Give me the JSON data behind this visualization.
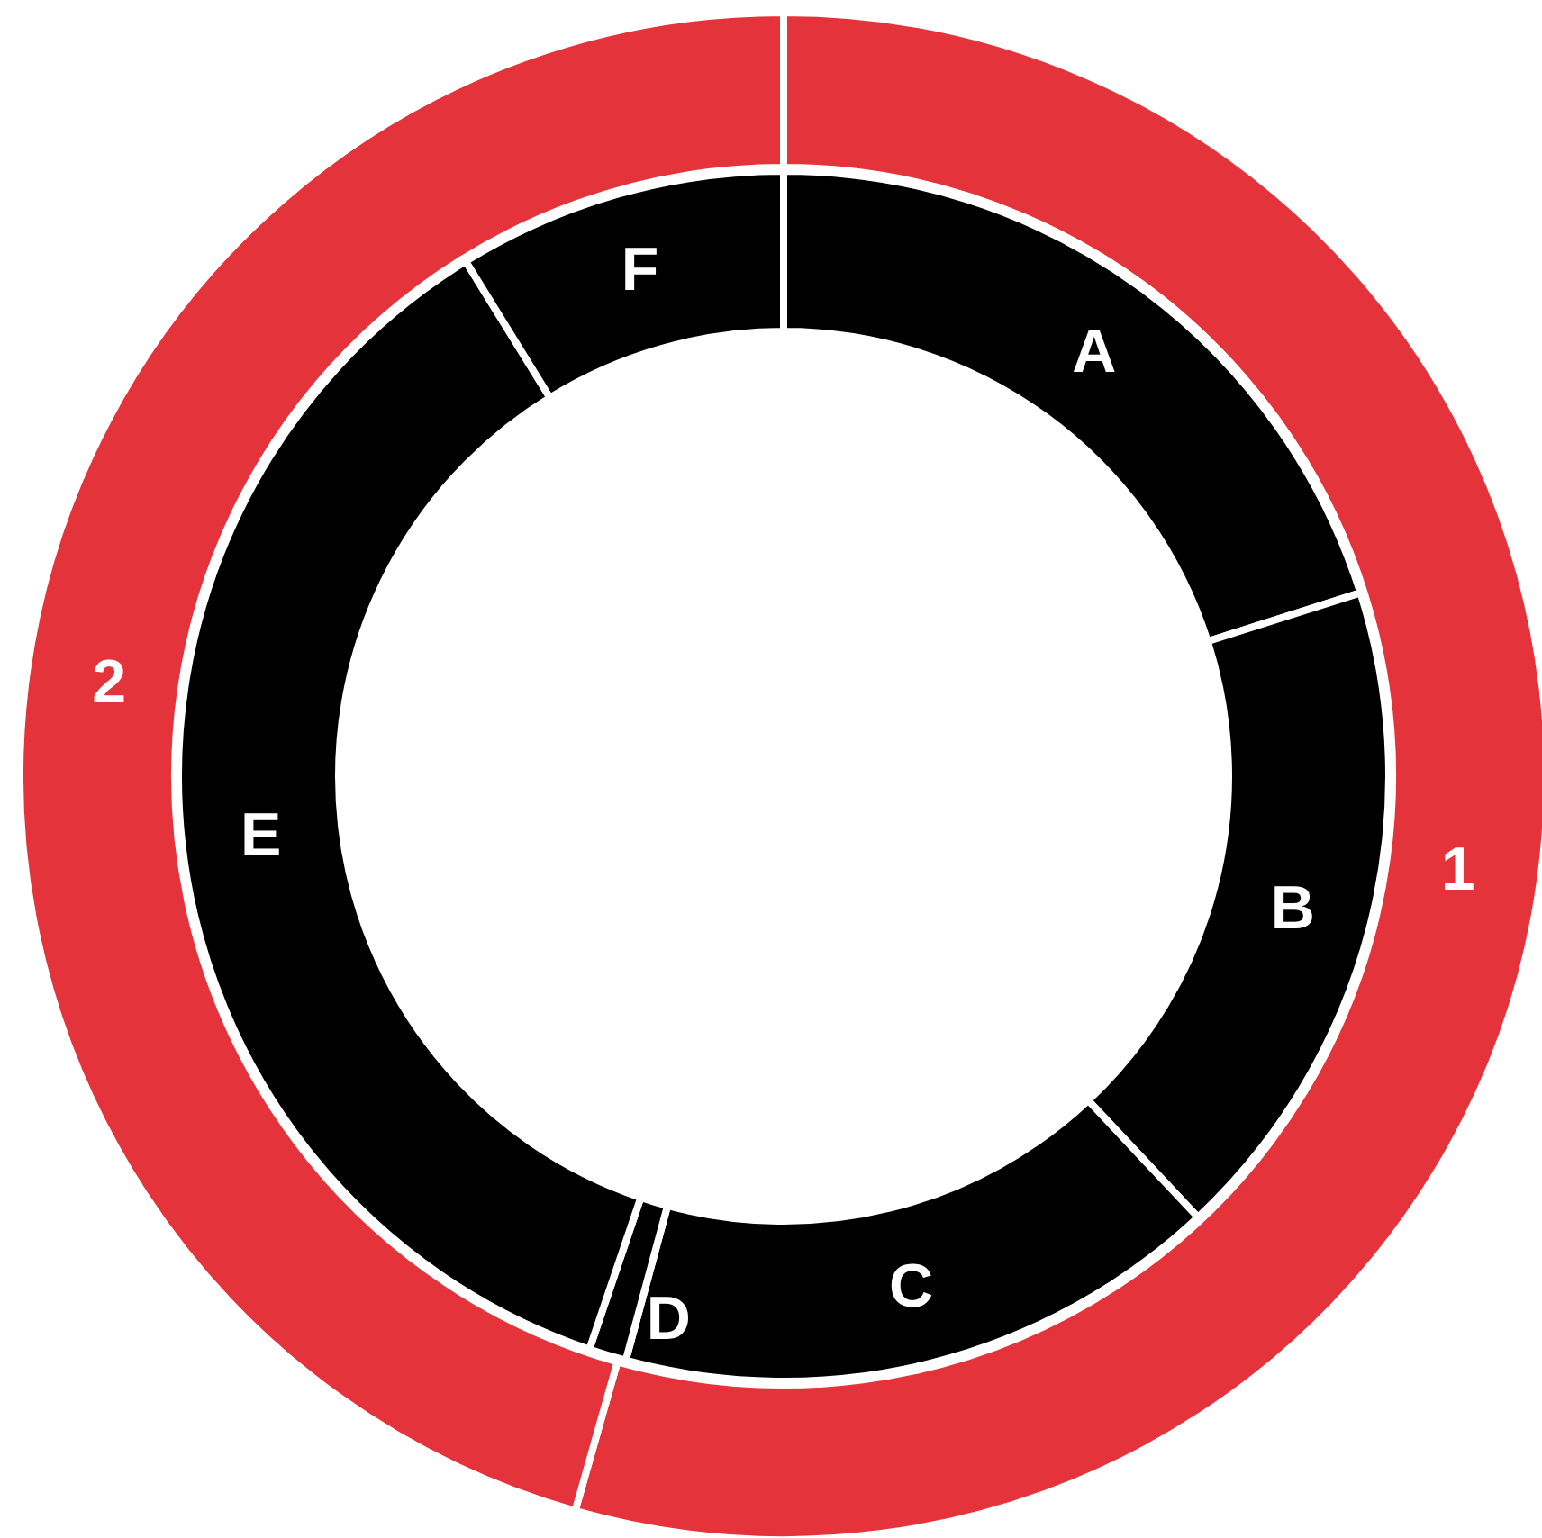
{
  "chart_data": [
    {
      "type": "donut",
      "categories": [
        "1",
        "2"
      ],
      "values": [
        54.4,
        45.6
      ],
      "colors": [
        "#e5333b",
        "#e5333b"
      ]
    },
    {
      "type": "donut",
      "categories": [
        "A",
        "B",
        "C",
        "D",
        "E",
        "F"
      ],
      "values": [
        20.1,
        17.9,
        16.2,
        1.0,
        36.0,
        8.8
      ],
      "colors": [
        "#000000",
        "#000000",
        "#000000",
        "#000000",
        "#000000",
        "#000000"
      ]
    }
  ]
}
